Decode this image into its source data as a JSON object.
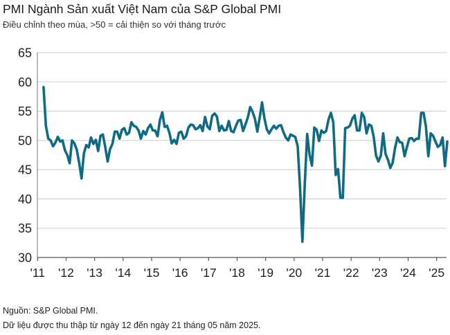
{
  "chart_data": {
    "type": "line",
    "title": "PMI Ngành Sản xuất Việt Nam của S&P Global PMI",
    "subtitle": "Điều chỉnh theo mùa, >50 = cải thiện so với tháng trước",
    "xlabel": "",
    "ylabel": "",
    "ylim": [
      30,
      65
    ],
    "yticks": [
      "65",
      "60",
      "55",
      "50",
      "45",
      "40",
      "35",
      "30"
    ],
    "xtick_labels": [
      "'11",
      "'12",
      "'13",
      "'14",
      "'15",
      "'16",
      "'17",
      "'18",
      "'19",
      "'20",
      "'21",
      "'22",
      "'23",
      "'24",
      "'25"
    ],
    "grid": true,
    "line_color": "#0f6b84",
    "start": "2011-03",
    "end": "2025-05",
    "values": [
      59.1,
      52.5,
      50.3,
      50.0,
      49.0,
      49.6,
      50.6,
      49.8,
      50.0,
      48.3,
      47.5,
      46.1,
      50.0,
      49.5,
      48.4,
      46.2,
      43.5,
      47.8,
      49.2,
      48.8,
      50.5,
      49.4,
      50.1,
      48.2,
      50.8,
      51.0,
      48.8,
      46.4,
      48.5,
      49.4,
      51.5,
      51.5,
      50.3,
      51.8,
      52.1,
      51.0,
      51.3,
      53.1,
      52.5,
      52.3,
      51.7,
      50.3,
      51.6,
      51.0,
      52.1,
      52.7,
      51.7,
      51.7,
      50.7,
      53.5,
      54.8,
      52.3,
      52.5,
      51.3,
      49.5,
      50.1,
      49.4,
      51.3,
      51.5,
      50.3,
      50.7,
      52.2,
      52.7,
      52.6,
      51.9,
      52.1,
      52.6,
      51.6,
      54.0,
      52.4,
      51.9,
      54.2,
      54.6,
      54.1,
      51.6,
      52.5,
      51.7,
      51.8,
      53.3,
      51.6,
      51.4,
      52.5,
      53.4,
      53.5,
      51.6,
      52.7,
      53.9,
      55.7,
      54.9,
      53.7,
      51.5,
      53.9,
      56.5,
      53.8,
      51.9,
      51.2,
      51.9,
      52.5,
      52.0,
      52.5,
      52.6,
      51.4,
      50.5,
      50.0,
      51.0,
      50.8,
      50.6,
      49.0,
      41.9,
      32.7,
      42.7,
      51.1,
      47.6,
      45.7,
      52.2,
      51.8,
      49.9,
      51.7,
      51.3,
      51.6,
      53.6,
      54.7,
      53.1,
      44.1,
      45.1,
      40.2,
      40.2,
      52.1,
      52.2,
      52.5,
      53.7,
      54.3,
      51.7,
      51.7,
      54.7,
      54.0,
      51.2,
      52.7,
      52.5,
      50.6,
      47.4,
      46.4,
      47.4,
      51.2,
      47.7,
      46.7,
      45.3,
      46.2,
      48.7,
      50.5,
      49.7,
      49.6,
      47.3,
      48.9,
      50.3,
      50.4,
      49.9,
      50.3,
      50.3,
      54.7,
      54.7,
      52.4,
      47.3,
      51.2,
      50.8,
      49.8,
      48.9,
      49.2,
      50.5,
      45.6,
      49.8
    ]
  },
  "footer": {
    "source": "Nguồn: S&P Global PMI.",
    "note": "Dữ liệu được thu thập từ ngày 12 đến ngày 21 tháng 05 năm 2025."
  }
}
